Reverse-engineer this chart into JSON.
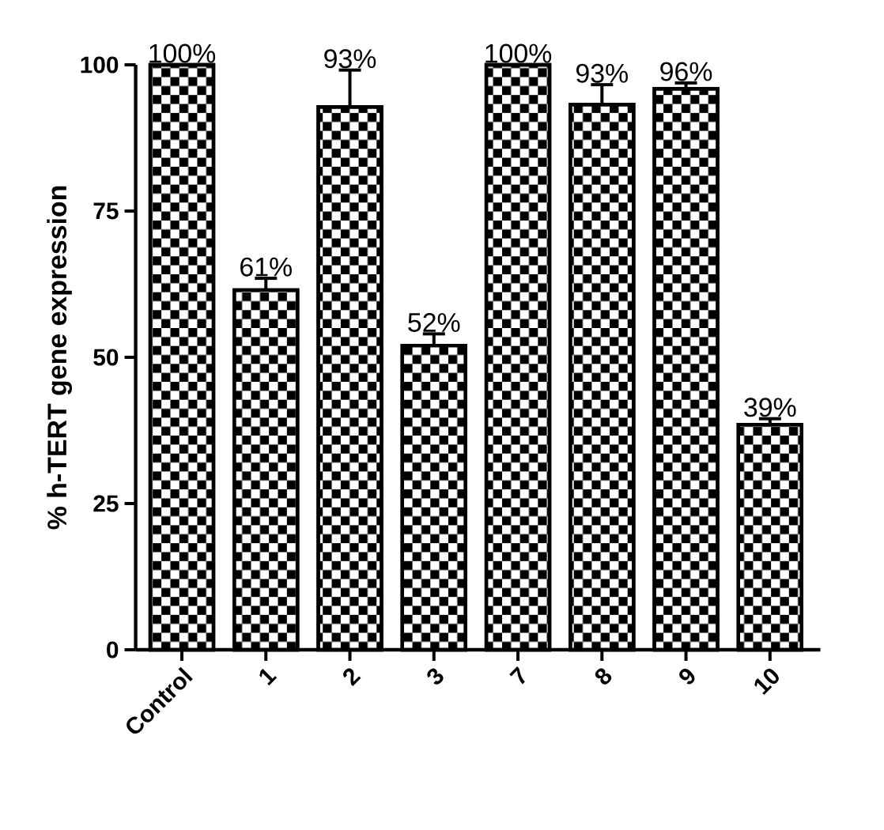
{
  "chart_data": {
    "type": "bar",
    "ylabel": "% h-TERT gene expression",
    "categories": [
      "Control",
      "1",
      "2",
      "3",
      "7",
      "8",
      "9",
      "10"
    ],
    "values": [
      100,
      61.5,
      92.8,
      52,
      100,
      93.2,
      95.9,
      38.5
    ],
    "errors": [
      null,
      2,
      6.3,
      2,
      null,
      3.4,
      1,
      1
    ],
    "value_labels": [
      "100%",
      "61%",
      "93%",
      "52%",
      "100%",
      "93%",
      "96%",
      "39%"
    ],
    "color": "#000000",
    "ylim": [
      0,
      100
    ],
    "yticks": [
      0,
      25,
      50,
      75,
      100
    ]
  }
}
